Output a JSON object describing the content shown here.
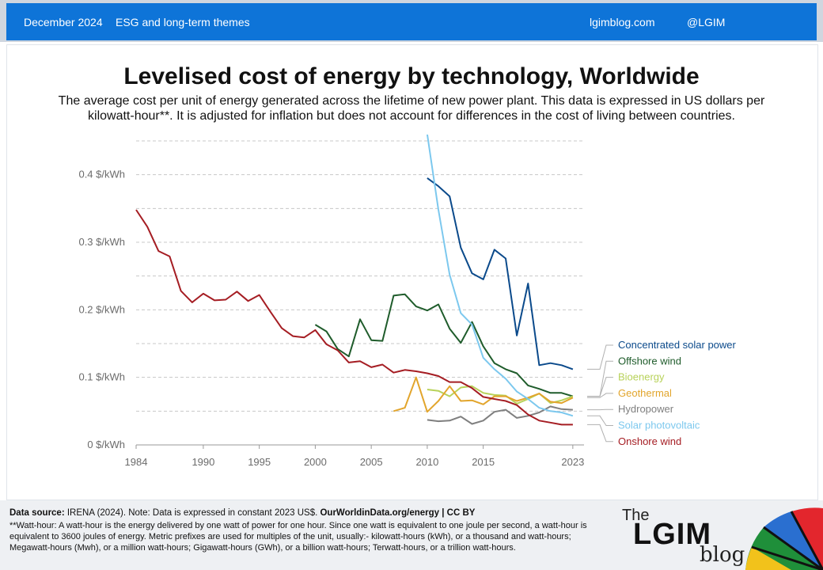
{
  "header": {
    "date": "December 2024",
    "category": "ESG and long-term themes",
    "site": "lgimblog.com",
    "handle": "@LGIM"
  },
  "chart_data": {
    "type": "line",
    "title": "Levelised cost of energy by technology, Worldwide",
    "subtitle": "The average cost per unit of energy generated across the lifetime of new power plant. This data is expressed in US dollars per kilowatt-hour**.  It is adjusted for inflation but does not account for differences in the cost of living between countries.",
    "ylim": [
      0,
      0.45
    ],
    "xlim": [
      1984,
      2024
    ],
    "y_ticks": [
      {
        "value": 0,
        "label": "0 $/kWh"
      },
      {
        "value": 0.1,
        "label": "0.1 $/kWh"
      },
      {
        "value": 0.2,
        "label": "0.2 $/kWh"
      },
      {
        "value": 0.3,
        "label": "0.3 $/kWh"
      },
      {
        "value": 0.4,
        "label": "0.4 $/kWh"
      }
    ],
    "x_ticks": [
      {
        "value": 1984,
        "label": "1984"
      },
      {
        "value": 1990,
        "label": "1990"
      },
      {
        "value": 1995,
        "label": "1995"
      },
      {
        "value": 2000,
        "label": "2000"
      },
      {
        "value": 2005,
        "label": "2005"
      },
      {
        "value": 2010,
        "label": "2010"
      },
      {
        "value": 2015,
        "label": "2015"
      },
      {
        "value": 2023,
        "label": "2023"
      }
    ],
    "grid": true,
    "legend": "right",
    "series": [
      {
        "name": "Concentrated solar power",
        "color": "#0b4a8b",
        "x": [
          2010,
          2011,
          2012,
          2013,
          2014,
          2015,
          2016,
          2017,
          2018,
          2019,
          2020,
          2021,
          2022,
          2023
        ],
        "y": [
          0.395,
          0.383,
          0.368,
          0.292,
          0.254,
          0.245,
          0.289,
          0.276,
          0.162,
          0.239,
          0.118,
          0.121,
          0.118,
          0.112
        ]
      },
      {
        "name": "Offshore wind",
        "color": "#1f5c2b",
        "x": [
          2000,
          2001,
          2002,
          2003,
          2004,
          2005,
          2006,
          2007,
          2008,
          2009,
          2010,
          2011,
          2012,
          2013,
          2014,
          2015,
          2016,
          2017,
          2018,
          2019,
          2020,
          2021,
          2022,
          2023
        ],
        "y": [
          0.178,
          0.168,
          0.142,
          0.131,
          0.186,
          0.155,
          0.154,
          0.221,
          0.223,
          0.205,
          0.199,
          0.208,
          0.172,
          0.151,
          0.182,
          0.146,
          0.121,
          0.112,
          0.106,
          0.088,
          0.083,
          0.077,
          0.077,
          0.072
        ]
      },
      {
        "name": "Bioenergy",
        "color": "#b8d25a",
        "x": [
          2010,
          2011,
          2012,
          2013,
          2014,
          2015,
          2016,
          2017,
          2018,
          2019,
          2020,
          2021,
          2022,
          2023
        ],
        "y": [
          0.082,
          0.08,
          0.072,
          0.085,
          0.087,
          0.077,
          0.074,
          0.073,
          0.061,
          0.068,
          0.076,
          0.062,
          0.066,
          0.072
        ]
      },
      {
        "name": "Geothermal",
        "color": "#e2a52c",
        "x": [
          2007,
          2008,
          2009,
          2010,
          2011,
          2012,
          2013,
          2014,
          2015,
          2016,
          2017,
          2018,
          2019,
          2020,
          2021,
          2022,
          2023
        ],
        "y": [
          0.05,
          0.055,
          0.1,
          0.049,
          0.065,
          0.087,
          0.065,
          0.066,
          0.06,
          0.072,
          0.072,
          0.065,
          0.07,
          0.076,
          0.064,
          0.062,
          0.07
        ]
      },
      {
        "name": "Hydropower",
        "color": "#7f7f7f",
        "x": [
          2010,
          2011,
          2012,
          2013,
          2014,
          2015,
          2016,
          2017,
          2018,
          2019,
          2020,
          2021,
          2022,
          2023
        ],
        "y": [
          0.037,
          0.035,
          0.036,
          0.042,
          0.031,
          0.036,
          0.049,
          0.052,
          0.04,
          0.043,
          0.048,
          0.057,
          0.053,
          0.052
        ]
      },
      {
        "name": "Solar photovoltaic",
        "color": "#7cc8ee",
        "x": [
          2010,
          2011,
          2012,
          2013,
          2014,
          2015,
          2016,
          2017,
          2018,
          2019,
          2020,
          2021,
          2022,
          2023
        ],
        "y": [
          0.46,
          0.348,
          0.252,
          0.195,
          0.178,
          0.129,
          0.112,
          0.098,
          0.079,
          0.068,
          0.055,
          0.05,
          0.048,
          0.043
        ]
      },
      {
        "name": "Onshore wind",
        "color": "#a51d23",
        "x": [
          1984,
          1985,
          1986,
          1987,
          1988,
          1989,
          1990,
          1991,
          1992,
          1993,
          1994,
          1995,
          1996,
          1997,
          1998,
          1999,
          2000,
          2001,
          2002,
          2003,
          2004,
          2005,
          2006,
          2007,
          2008,
          2009,
          2010,
          2011,
          2012,
          2013,
          2014,
          2015,
          2016,
          2017,
          2018,
          2019,
          2020,
          2021,
          2022,
          2023
        ],
        "y": [
          0.348,
          0.323,
          0.287,
          0.279,
          0.228,
          0.211,
          0.224,
          0.214,
          0.215,
          0.227,
          0.213,
          0.222,
          0.197,
          0.173,
          0.161,
          0.159,
          0.17,
          0.149,
          0.14,
          0.122,
          0.124,
          0.115,
          0.119,
          0.107,
          0.111,
          0.109,
          0.106,
          0.102,
          0.093,
          0.093,
          0.084,
          0.071,
          0.068,
          0.065,
          0.059,
          0.045,
          0.036,
          0.033,
          0.03,
          0.03
        ]
      }
    ]
  },
  "footer": {
    "source_label": "Data source:",
    "source_text": " IRENA (2024). Note: Data is expressed in constant 2023 US$. ",
    "source_link": "OurWorldinData.org/energy  | CC BY",
    "note": "**Watt-hour: A watt-hour is the energy delivered by one watt of power for one hour. Since one watt is equivalent to one joule per second, a watt-hour is equivalent to  3600 joules of energy. Metric prefixes are used for multiples of the unit, usually:- kilowatt-hours (kWh), or a thousand and watt-hours; Megawatt-hours (Mwh), or a million watt-hours; Gigawatt-hours (GWh), or a billion watt-hours; Terwatt-hours, or a trillion watt-hours."
  },
  "logo": {
    "the": "The",
    "main": "LGIM",
    "blog": "blog"
  }
}
